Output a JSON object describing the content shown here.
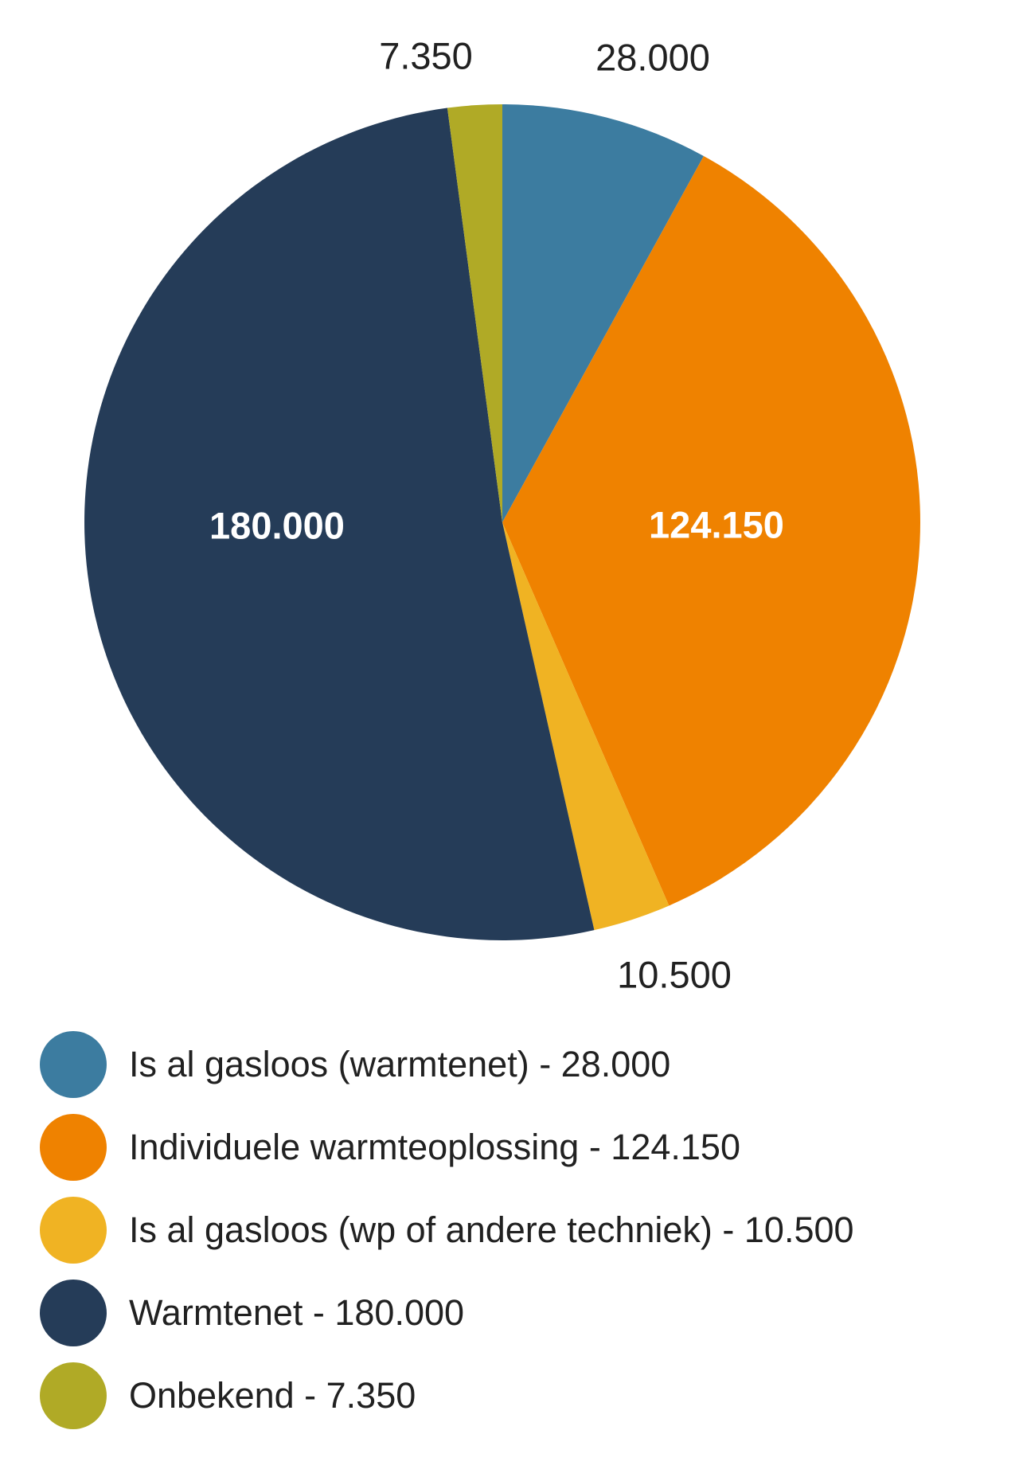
{
  "chart_data": {
    "type": "pie",
    "title": "",
    "total": 350000,
    "start_angle_deg": 0,
    "direction": "clockwise",
    "number_format": "thousands-dot",
    "background_color": "#ffffff",
    "outside_label_color": "#212121",
    "inside_label_color": "#ffffff",
    "slices": [
      {
        "label": "Is al gasloos (warmtenet)",
        "value": 28000,
        "display_value": "28.000",
        "color": "#3C7CA0",
        "label_placement": "outside"
      },
      {
        "label": "Individuele warmteoplossing",
        "value": 124150,
        "display_value": "124.150",
        "color": "#EF8200",
        "label_placement": "inside"
      },
      {
        "label": "Is al gasloos (wp of andere techniek)",
        "value": 10500,
        "display_value": "10.500",
        "color": "#F0B323",
        "label_placement": "outside"
      },
      {
        "label": "Warmtenet",
        "value": 180000,
        "display_value": "180.000",
        "color": "#253C58",
        "label_placement": "inside"
      },
      {
        "label": "Onbekend",
        "value": 7350,
        "display_value": "7.350",
        "color": "#B0AA26",
        "label_placement": "outside"
      }
    ],
    "legend_position": "bottom-left"
  },
  "legend": {
    "items": [
      {
        "text": "Is al gasloos (warmtenet) - 28.000",
        "color": "#3C7CA0"
      },
      {
        "text": "Individuele warmteoplossing - 124.150",
        "color": "#EF8200"
      },
      {
        "text": "Is al gasloos (wp of andere techniek) - 10.500",
        "color": "#F0B323"
      },
      {
        "text": "Warmtenet - 180.000",
        "color": "#253C58"
      },
      {
        "text": "Onbekend - 7.350",
        "color": "#B0AA26"
      }
    ]
  }
}
